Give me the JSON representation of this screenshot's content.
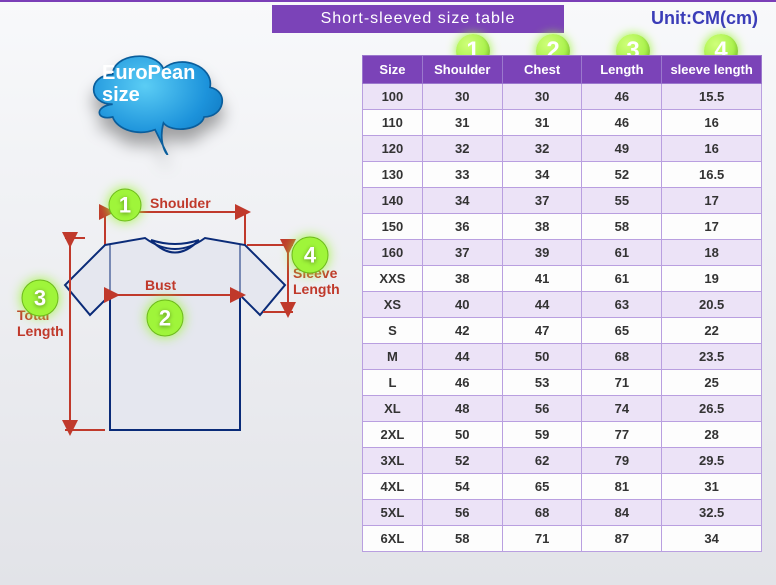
{
  "title": "Short-sleeved size table",
  "unit_label": "Unit:CM(cm)",
  "cloud_text": "EuroPean size",
  "diagram": {
    "labels": {
      "shoulder": "Shoulder",
      "bust": "Bust",
      "total_length_l1": "Total",
      "total_length_l2": "Length",
      "sleeve_length_l1": "Sleeve",
      "sleeve_length_l2": "Length"
    },
    "numbers": {
      "n1": "1",
      "n2": "2",
      "n3": "3",
      "n4": "4"
    }
  },
  "header_numbers": {
    "n1": "1",
    "n2": "2",
    "n3": "3",
    "n4": "4"
  },
  "table": {
    "columns": [
      "Size",
      "Shoulder",
      "Chest",
      "Length",
      "sleeve length"
    ],
    "rows": [
      [
        "100",
        "30",
        "30",
        "46",
        "15.5"
      ],
      [
        "110",
        "31",
        "31",
        "46",
        "16"
      ],
      [
        "120",
        "32",
        "32",
        "49",
        "16"
      ],
      [
        "130",
        "33",
        "34",
        "52",
        "16.5"
      ],
      [
        "140",
        "34",
        "37",
        "55",
        "17"
      ],
      [
        "150",
        "36",
        "38",
        "58",
        "17"
      ],
      [
        "160",
        "37",
        "39",
        "61",
        "18"
      ],
      [
        "XXS",
        "38",
        "41",
        "61",
        "19"
      ],
      [
        "XS",
        "40",
        "44",
        "63",
        "20.5"
      ],
      [
        "S",
        "42",
        "47",
        "65",
        "22"
      ],
      [
        "M",
        "44",
        "50",
        "68",
        "23.5"
      ],
      [
        "L",
        "46",
        "53",
        "71",
        "25"
      ],
      [
        "XL",
        "48",
        "56",
        "74",
        "26.5"
      ],
      [
        "2XL",
        "50",
        "59",
        "77",
        "28"
      ],
      [
        "3XL",
        "52",
        "62",
        "79",
        "29.5"
      ],
      [
        "4XL",
        "54",
        "65",
        "81",
        "31"
      ],
      [
        "5XL",
        "56",
        "68",
        "84",
        "32.5"
      ],
      [
        "6XL",
        "58",
        "71",
        "87",
        "34"
      ]
    ],
    "col_widths": [
      "60px",
      "80px",
      "80px",
      "80px",
      "100px"
    ],
    "header_bg": "#7b43b8",
    "row_odd_bg": "#ece3f7",
    "row_even_bg": "#fdfdfd",
    "border_color": "#b99fe0"
  },
  "colors": {
    "title_bg": "#7b43b8",
    "unit_text": "#3b3db8",
    "cloud_gradient_top": "#34b7f1",
    "cloud_gradient_bottom": "#0a78c4",
    "tshirt_fill": "#e5e7ef",
    "tshirt_stroke": "#0a2b78",
    "dim_line": "#c0392b",
    "dim_text": "#c0392b",
    "numball": "#9ff53a"
  }
}
